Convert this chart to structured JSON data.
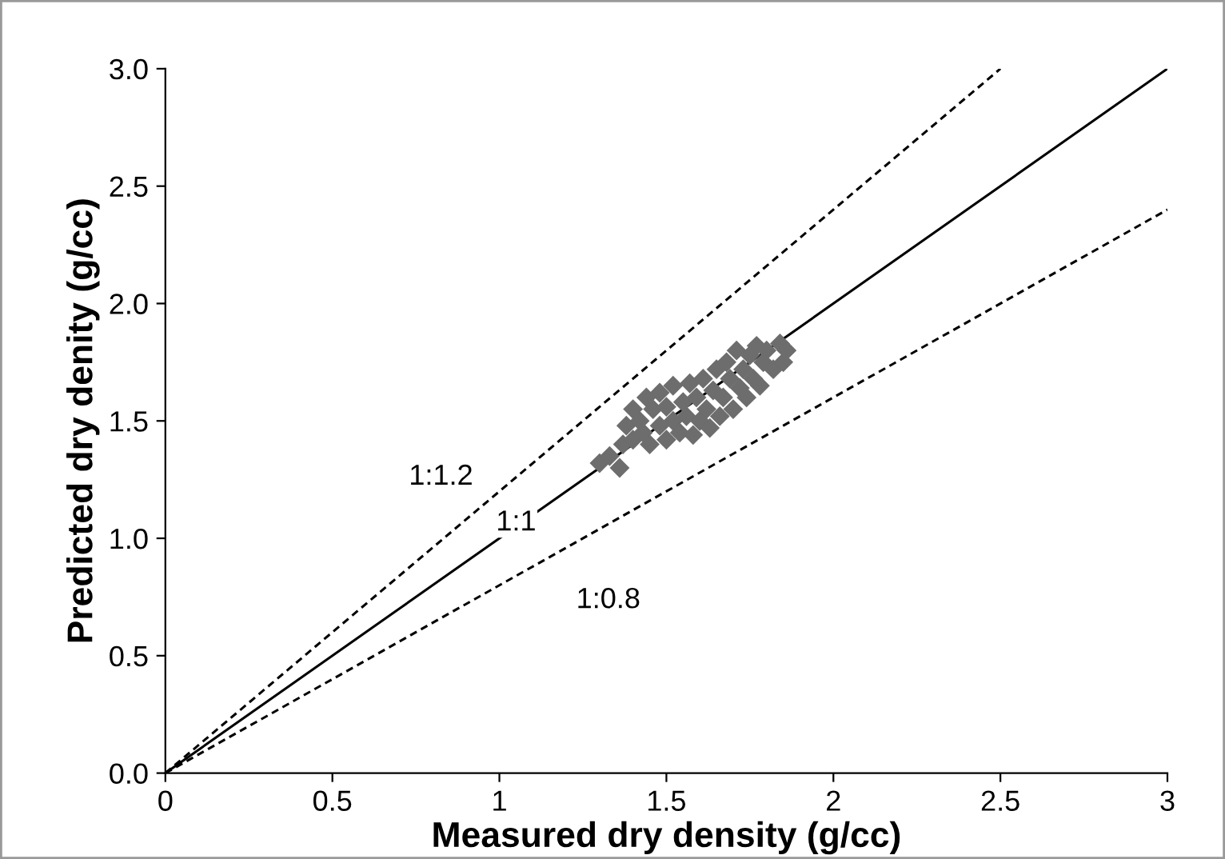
{
  "chart_data": {
    "type": "scatter",
    "xlabel": "Measured dry density (g/cc)",
    "ylabel": "Predicted dry denity (g/cc)",
    "xlim": [
      0,
      3
    ],
    "ylim": [
      0,
      3
    ],
    "xticks": [
      0,
      0.5,
      1,
      1.5,
      2,
      2.5,
      3
    ],
    "yticks": [
      {
        "value": 0,
        "label": "0.0"
      },
      {
        "value": 0.5,
        "label": "0.5"
      },
      {
        "value": 1,
        "label": "1.0"
      },
      {
        "value": 1.5,
        "label": "1.5"
      },
      {
        "value": 2,
        "label": "2.0"
      },
      {
        "value": 2.5,
        "label": "2.5"
      },
      {
        "value": 3,
        "label": "3.0"
      }
    ],
    "grid": false,
    "series": [
      {
        "type": "line",
        "color": "#000000",
        "line_style": "dashed",
        "marker": "none",
        "x": [
          0,
          2.5
        ],
        "values": [
          0,
          3.0
        ]
      },
      {
        "type": "line",
        "color": "#000000",
        "line_style": "solid",
        "marker": "none",
        "x": [
          0,
          3
        ],
        "values": [
          0,
          3
        ]
      },
      {
        "type": "line",
        "color": "#000000",
        "line_style": "dashed",
        "marker": "none",
        "x": [
          0,
          3
        ],
        "values": [
          0,
          2.4
        ]
      },
      {
        "color": "#6d6d6d",
        "marker": "diamond",
        "x": [
          1.3,
          1.33,
          1.36,
          1.37,
          1.38,
          1.4,
          1.4,
          1.42,
          1.43,
          1.44,
          1.45,
          1.46,
          1.48,
          1.48,
          1.5,
          1.5,
          1.52,
          1.52,
          1.54,
          1.55,
          1.56,
          1.57,
          1.58,
          1.59,
          1.6,
          1.61,
          1.62,
          1.63,
          1.64,
          1.65,
          1.66,
          1.67,
          1.68,
          1.69,
          1.7,
          1.71,
          1.72,
          1.73,
          1.74,
          1.75,
          1.76,
          1.77,
          1.78,
          1.79,
          1.8,
          1.82,
          1.84,
          1.85,
          1.86
        ],
        "values": [
          1.32,
          1.35,
          1.3,
          1.4,
          1.48,
          1.42,
          1.55,
          1.5,
          1.45,
          1.6,
          1.4,
          1.55,
          1.48,
          1.62,
          1.42,
          1.56,
          1.5,
          1.65,
          1.45,
          1.58,
          1.52,
          1.66,
          1.44,
          1.6,
          1.5,
          1.68,
          1.55,
          1.47,
          1.63,
          1.72,
          1.52,
          1.6,
          1.75,
          1.68,
          1.55,
          1.8,
          1.64,
          1.72,
          1.6,
          1.78,
          1.68,
          1.82,
          1.65,
          1.75,
          1.8,
          1.72,
          1.83,
          1.75,
          1.8
        ]
      }
    ],
    "annotations": [
      "1:1.2",
      "1:1",
      "1:0.8"
    ]
  }
}
